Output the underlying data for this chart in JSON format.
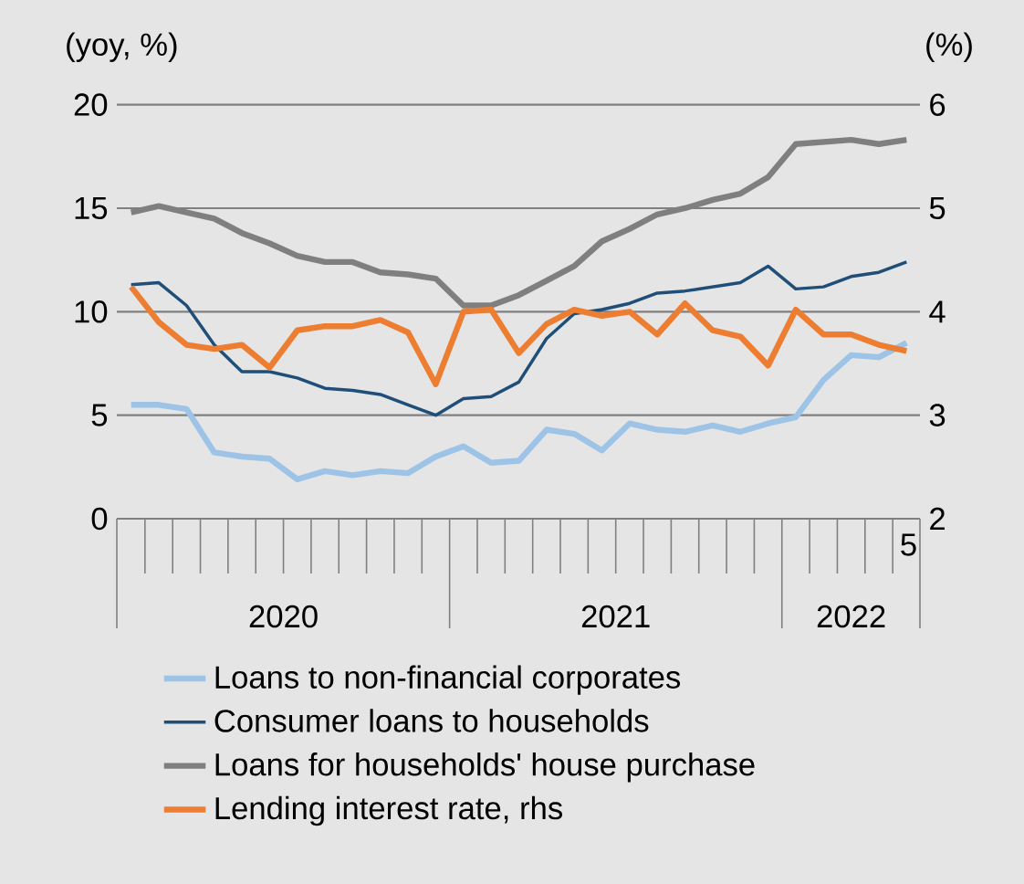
{
  "chart_data": {
    "type": "line",
    "x": [
      "2020-01",
      "2020-02",
      "2020-03",
      "2020-04",
      "2020-05",
      "2020-06",
      "2020-07",
      "2020-08",
      "2020-09",
      "2020-10",
      "2020-11",
      "2020-12",
      "2021-01",
      "2021-02",
      "2021-03",
      "2021-04",
      "2021-05",
      "2021-06",
      "2021-07",
      "2021-08",
      "2021-09",
      "2021-10",
      "2021-11",
      "2021-12",
      "2022-01",
      "2022-02",
      "2022-03",
      "2022-04",
      "2022-05"
    ],
    "series": [
      {
        "name": "Loans to non-financial corporates",
        "color": "#9dc3e6",
        "values": [
          5.5,
          5.5,
          5.3,
          3.2,
          3.0,
          2.9,
          1.9,
          2.3,
          2.1,
          2.3,
          2.2,
          3.0,
          3.5,
          2.7,
          2.8,
          4.3,
          4.1,
          3.3,
          4.6,
          4.3,
          4.2,
          4.5,
          4.2,
          4.6,
          4.9,
          6.7,
          7.9,
          7.8,
          8.5
        ]
      },
      {
        "name": "Consumer loans to households",
        "color": "#1f4e79",
        "values": [
          11.3,
          11.4,
          10.3,
          8.4,
          7.1,
          7.1,
          6.8,
          6.3,
          6.2,
          6.0,
          5.5,
          5.0,
          5.8,
          5.9,
          6.6,
          8.7,
          9.9,
          10.1,
          10.4,
          10.9,
          11.0,
          11.2,
          11.4,
          12.2,
          11.1,
          11.2,
          11.7,
          11.9,
          12.4
        ]
      },
      {
        "name": "Loans for households' house purchase",
        "color": "#7f7f7f",
        "values": [
          14.8,
          15.1,
          14.8,
          14.5,
          13.8,
          13.3,
          12.7,
          12.4,
          12.4,
          11.9,
          11.8,
          11.6,
          10.3,
          10.3,
          10.8,
          11.5,
          12.2,
          13.4,
          14.0,
          14.7,
          15.0,
          15.4,
          15.7,
          16.5,
          18.1,
          18.2,
          18.3,
          18.1,
          18.3
        ]
      },
      {
        "name": "Lending interest rate, rhs",
        "color": "#ed7d31",
        "axis": "y2",
        "values": [
          4.24,
          3.9,
          3.68,
          3.64,
          3.68,
          3.46,
          3.82,
          3.86,
          3.86,
          3.92,
          3.8,
          3.3,
          4.0,
          4.02,
          3.6,
          3.88,
          4.02,
          3.96,
          4.0,
          3.78,
          4.08,
          3.82,
          3.76,
          3.48,
          4.02,
          3.78,
          3.78,
          3.68,
          3.62
        ]
      }
    ],
    "ylabel": "(yoy, %)",
    "y2label": "(%)",
    "xlim": [
      "2019-12-16",
      "2022-05-16"
    ],
    "xticks": [
      {
        "value": "2020-06-16",
        "label": "2020"
      },
      {
        "value": "2021-06-16",
        "label": "2021"
      },
      {
        "value": "2022-03",
        "label": "2022"
      }
    ],
    "ylim": [
      0,
      20
    ],
    "yticks": [
      0,
      5,
      10,
      15,
      20
    ],
    "y2lim": [
      2,
      6
    ],
    "y2ticks": [
      2,
      3,
      4,
      5,
      6
    ],
    "annotations": [
      "5"
    ],
    "grid": "y",
    "legend": "bottom",
    "marker": "none",
    "line_style": "solid"
  }
}
